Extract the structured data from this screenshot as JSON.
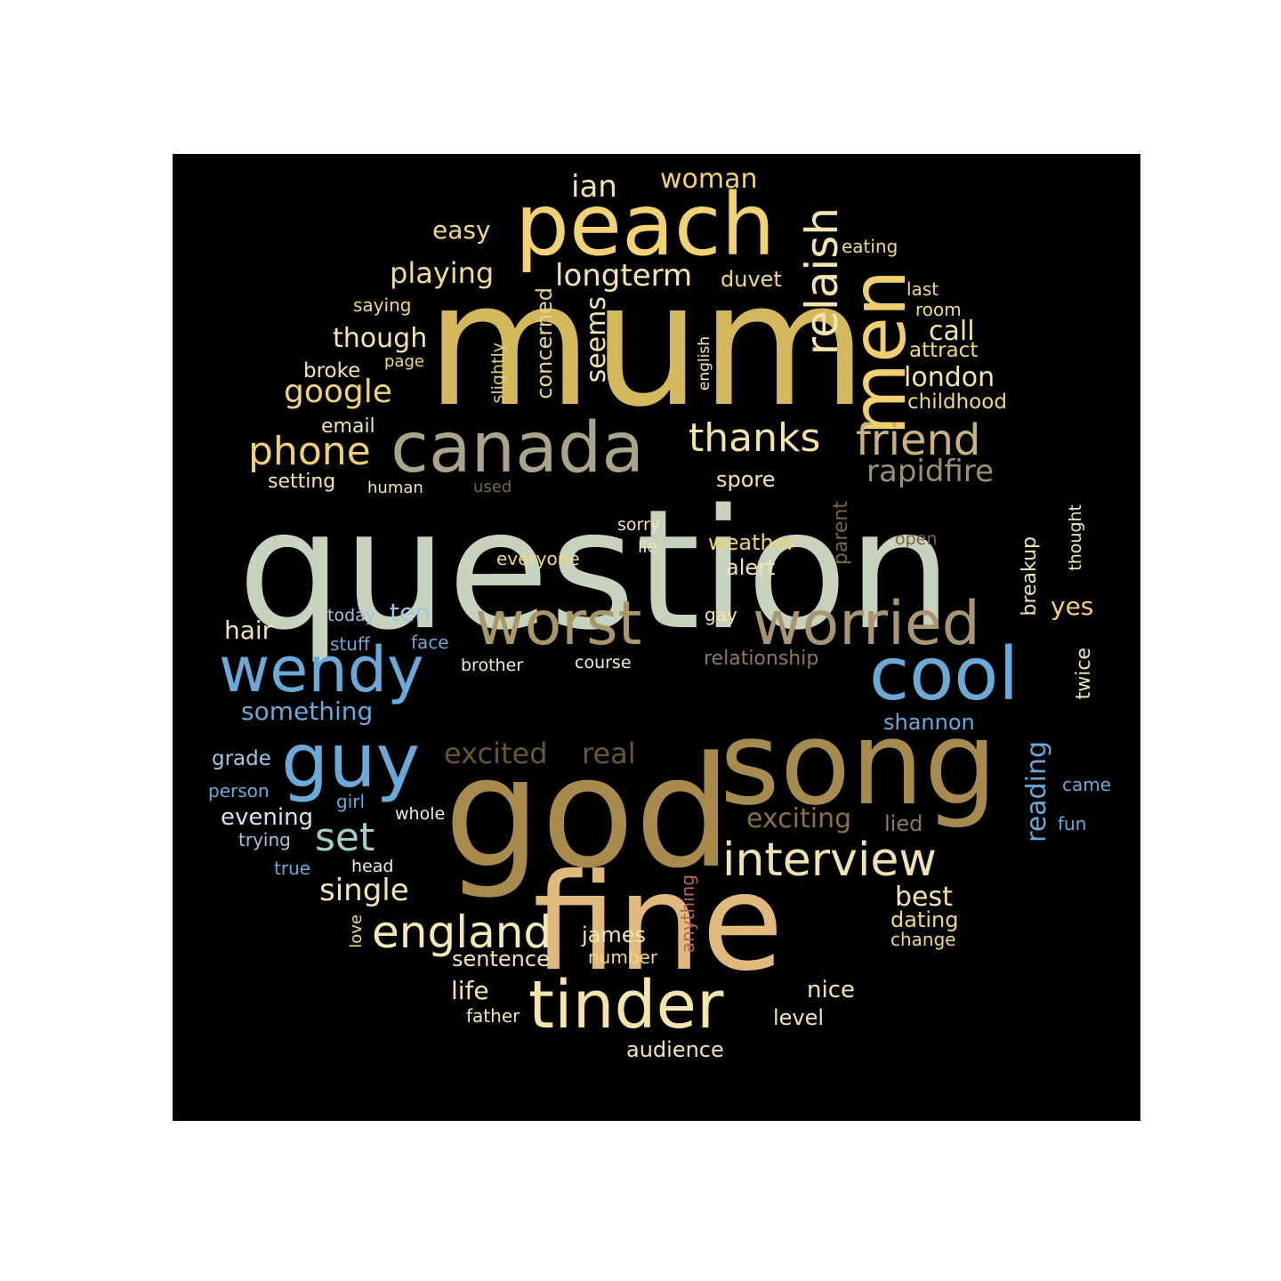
{
  "palette": {
    "background": "#000000",
    "page": "#ffffff",
    "gold": "#d4b95c",
    "sage": "#c7d3bd",
    "tan": "#a99669",
    "blue": "#6ba9d9",
    "cream": "#f3e3a8",
    "yellow": "#f5d16a",
    "brown": "#8a6e45",
    "peach": "#dcb67a",
    "pink": "#c05f63"
  },
  "words": [
    {
      "text": "question",
      "color": "#c7d3bd"
    },
    {
      "text": "mum",
      "color": "#d4b95c"
    },
    {
      "text": "god",
      "color": "#a88a4c"
    },
    {
      "text": "fine",
      "color": "#e0b97c"
    },
    {
      "text": "song",
      "color": "#a68a4e"
    },
    {
      "text": "peach",
      "color": "#f2d272"
    },
    {
      "text": "canada",
      "color": "#a9a48a"
    },
    {
      "text": "men",
      "color": "#f0cf6e"
    },
    {
      "text": "tinder",
      "color": "#f5e5ac"
    },
    {
      "text": "worst",
      "color": "#a99669"
    },
    {
      "text": "worried",
      "color": "#a89573"
    },
    {
      "text": "cool",
      "color": "#6ba9d9"
    },
    {
      "text": "wendy",
      "color": "#6ba9d9"
    },
    {
      "text": "guy",
      "color": "#6ba9d9"
    },
    {
      "text": "interview",
      "color": "#f1e2b2"
    },
    {
      "text": "relaish",
      "color": "#f5e3b0"
    },
    {
      "text": "thanks",
      "color": "#f5e4a8"
    },
    {
      "text": "friend",
      "color": "#c9b37a"
    },
    {
      "text": "england",
      "color": "#f7eab4"
    },
    {
      "text": "phone",
      "color": "#f1d06e"
    },
    {
      "text": "set",
      "color": "#9fd0c8"
    },
    {
      "text": "google",
      "color": "#f0d27c"
    },
    {
      "text": "longterm",
      "color": "#f5e4b0"
    },
    {
      "text": "ian",
      "color": "#f5e4b0"
    },
    {
      "text": "woman",
      "color": "#f2d272"
    },
    {
      "text": "playing",
      "color": "#f2da8c"
    },
    {
      "text": "though",
      "color": "#f5e4b0"
    },
    {
      "text": "rapidfire",
      "color": "#9c8f6f"
    },
    {
      "text": "single",
      "color": "#f5e4b0"
    },
    {
      "text": "seems",
      "color": "#f5e4b0"
    },
    {
      "text": "concerned",
      "color": "#e9d390"
    },
    {
      "text": "call",
      "color": "#f5e4b0"
    },
    {
      "text": "london",
      "color": "#f5e4b0"
    },
    {
      "text": "easy",
      "color": "#f2d880"
    },
    {
      "text": "eating",
      "color": "#f2d880"
    },
    {
      "text": "last",
      "color": "#f2d880"
    },
    {
      "text": "room",
      "color": "#f2d880"
    },
    {
      "text": "attract",
      "color": "#f2d880"
    },
    {
      "text": "childhood",
      "color": "#f2d880"
    },
    {
      "text": "duvet",
      "color": "#f2d880"
    },
    {
      "text": "saying",
      "color": "#f2d880"
    },
    {
      "text": "broke",
      "color": "#f5e4b0"
    },
    {
      "text": "page",
      "color": "#f2d880"
    },
    {
      "text": "email",
      "color": "#f5e4b0"
    },
    {
      "text": "slightly",
      "color": "#e8cf80"
    },
    {
      "text": "english",
      "color": "#f5e4b0"
    },
    {
      "text": "setting",
      "color": "#f5e4b0"
    },
    {
      "text": "human",
      "color": "#f5e4b0"
    },
    {
      "text": "used",
      "color": "#7a6642"
    },
    {
      "text": "spore",
      "color": "#f5e4b0"
    },
    {
      "text": "hair",
      "color": "#f5e4b0"
    },
    {
      "text": "ten",
      "color": "#9fc9e6"
    },
    {
      "text": "today",
      "color": "#a0c4e0"
    },
    {
      "text": "stuff",
      "color": "#6ba9d9"
    },
    {
      "text": "face",
      "color": "#6ba9d9"
    },
    {
      "text": "brother",
      "color": "#f1ecd8"
    },
    {
      "text": "course",
      "color": "#f1ecd8"
    },
    {
      "text": "something",
      "color": "#6ba9d9"
    },
    {
      "text": "sorry",
      "color": "#f5e4b0"
    },
    {
      "text": "lie",
      "color": "#f5e4b0"
    },
    {
      "text": "everyone",
      "color": "#f2d880"
    },
    {
      "text": "weather",
      "color": "#f2d272"
    },
    {
      "text": "alert",
      "color": "#f5e4b0"
    },
    {
      "text": "parent",
      "color": "#7a6642"
    },
    {
      "text": "open",
      "color": "#7a6642"
    },
    {
      "text": "thought",
      "color": "#f5e4b0"
    },
    {
      "text": "breakup",
      "color": "#f5e4b0"
    },
    {
      "text": "yes",
      "color": "#f2d272"
    },
    {
      "text": "gay",
      "color": "#f5e4b0"
    },
    {
      "text": "relationship",
      "color": "#8a7a5c"
    },
    {
      "text": "twice",
      "color": "#f5e4b0"
    },
    {
      "text": "shannon",
      "color": "#6ba9d9"
    },
    {
      "text": "grade",
      "color": "#9fc9e6"
    },
    {
      "text": "excited",
      "color": "#6a5533"
    },
    {
      "text": "real",
      "color": "#6a5533"
    },
    {
      "text": "reading",
      "color": "#6ba9d9"
    },
    {
      "text": "came",
      "color": "#6ba9d9"
    },
    {
      "text": "person",
      "color": "#6ba9d9"
    },
    {
      "text": "girl",
      "color": "#6ba9d9"
    },
    {
      "text": "evening",
      "color": "#d6e4f0"
    },
    {
      "text": "whole",
      "color": "#f1ecd8"
    },
    {
      "text": "exciting",
      "color": "#8a6e45"
    },
    {
      "text": "lied",
      "color": "#8a7a5c"
    },
    {
      "text": "fun",
      "color": "#6ba9d9"
    },
    {
      "text": "trying",
      "color": "#a0c4e0"
    },
    {
      "text": "true",
      "color": "#6ba9d9"
    },
    {
      "text": "head",
      "color": "#f1ecd8"
    },
    {
      "text": "anything",
      "color": "#c05f63"
    },
    {
      "text": "best",
      "color": "#f5e4b0"
    },
    {
      "text": "dating",
      "color": "#f2d880"
    },
    {
      "text": "change",
      "color": "#f2d880"
    },
    {
      "text": "love",
      "color": "#f2d880"
    },
    {
      "text": "james",
      "color": "#f5e4b0"
    },
    {
      "text": "sentence",
      "color": "#f5e4b0"
    },
    {
      "text": "number",
      "color": "#f2d880"
    },
    {
      "text": "life",
      "color": "#f5e4b0"
    },
    {
      "text": "nice",
      "color": "#f5e4b0"
    },
    {
      "text": "father",
      "color": "#f5e4b0"
    },
    {
      "text": "level",
      "color": "#f5e4b0"
    },
    {
      "text": "audience",
      "color": "#f5e4b0"
    }
  ]
}
